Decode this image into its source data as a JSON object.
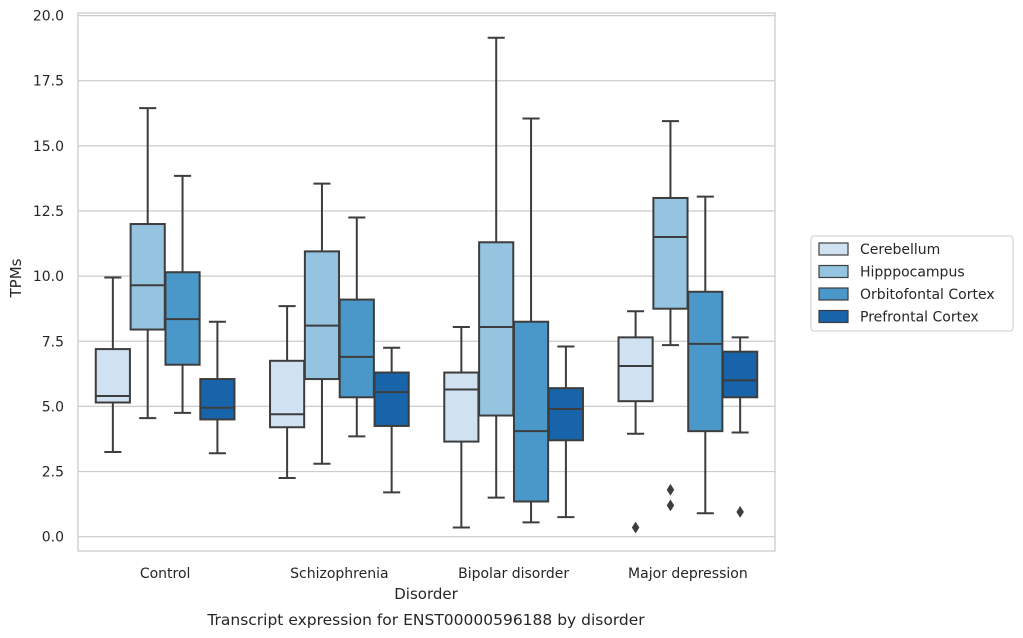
{
  "chart_data": {
    "type": "boxplot",
    "caption": "Transcript expression for ENST00000596188 by disorder",
    "xlabel": "Disorder",
    "ylabel": "TPMs",
    "ylim": [
      -0.55,
      20.1
    ],
    "yticks": [
      0.0,
      2.5,
      5.0,
      7.5,
      10.0,
      12.5,
      15.0,
      17.5,
      20.0
    ],
    "ytick_labels": [
      "0.0",
      "2.5",
      "5.0",
      "7.5",
      "10.0",
      "12.5",
      "15.0",
      "17.5",
      "20.0"
    ],
    "grid": "horizontal",
    "legend_position": "right",
    "categories": [
      "Control",
      "Schizophrenia",
      "Bipolar disorder",
      "Major depression"
    ],
    "series": [
      {
        "name": "Cerebellum",
        "color": "#d0e1f2",
        "boxes": [
          {
            "whislo": 3.25,
            "q1": 5.15,
            "med": 5.4,
            "q3": 7.2,
            "whishi": 9.95,
            "fliers": []
          },
          {
            "whislo": 2.25,
            "q1": 4.2,
            "med": 4.7,
            "q3": 6.75,
            "whishi": 8.85,
            "fliers": []
          },
          {
            "whislo": 0.35,
            "q1": 3.65,
            "med": 5.65,
            "q3": 6.3,
            "whishi": 8.05,
            "fliers": []
          },
          {
            "whislo": 3.95,
            "q1": 5.2,
            "med": 6.55,
            "q3": 7.65,
            "whishi": 8.65,
            "fliers": [
              0.35
            ]
          }
        ]
      },
      {
        "name": "Hipppocampus",
        "color": "#94c4df",
        "boxes": [
          {
            "whislo": 4.55,
            "q1": 7.95,
            "med": 9.65,
            "q3": 12.0,
            "whishi": 16.45,
            "fliers": []
          },
          {
            "whislo": 2.8,
            "q1": 6.05,
            "med": 8.1,
            "q3": 10.95,
            "whishi": 13.55,
            "fliers": []
          },
          {
            "whislo": 1.5,
            "q1": 4.65,
            "med": 8.05,
            "q3": 11.3,
            "whishi": 19.15,
            "fliers": []
          },
          {
            "whislo": 7.35,
            "q1": 8.75,
            "med": 11.5,
            "q3": 13.0,
            "whishi": 15.95,
            "fliers": [
              1.8,
              1.2
            ]
          }
        ]
      },
      {
        "name": "Orbitofontal Cortex",
        "color": "#4a98c9",
        "boxes": [
          {
            "whislo": 4.75,
            "q1": 6.6,
            "med": 8.35,
            "q3": 10.15,
            "whishi": 13.85,
            "fliers": []
          },
          {
            "whislo": 3.85,
            "q1": 5.35,
            "med": 6.9,
            "q3": 9.1,
            "whishi": 12.25,
            "fliers": []
          },
          {
            "whislo": 0.55,
            "q1": 1.35,
            "med": 4.05,
            "q3": 8.25,
            "whishi": 16.05,
            "fliers": []
          },
          {
            "whislo": 0.9,
            "q1": 4.05,
            "med": 7.4,
            "q3": 9.4,
            "whishi": 13.05,
            "fliers": []
          }
        ]
      },
      {
        "name": "Prefrontal Cortex",
        "color": "#1764ab",
        "boxes": [
          {
            "whislo": 3.2,
            "q1": 4.5,
            "med": 4.95,
            "q3": 6.05,
            "whishi": 8.25,
            "fliers": []
          },
          {
            "whislo": 1.7,
            "q1": 4.25,
            "med": 5.55,
            "q3": 6.3,
            "whishi": 7.25,
            "fliers": []
          },
          {
            "whislo": 0.75,
            "q1": 3.7,
            "med": 4.9,
            "q3": 5.7,
            "whishi": 7.3,
            "fliers": []
          },
          {
            "whislo": 4.0,
            "q1": 5.35,
            "med": 6.0,
            "q3": 7.1,
            "whishi": 7.65,
            "fliers": [
              0.95
            ]
          }
        ]
      }
    ]
  }
}
